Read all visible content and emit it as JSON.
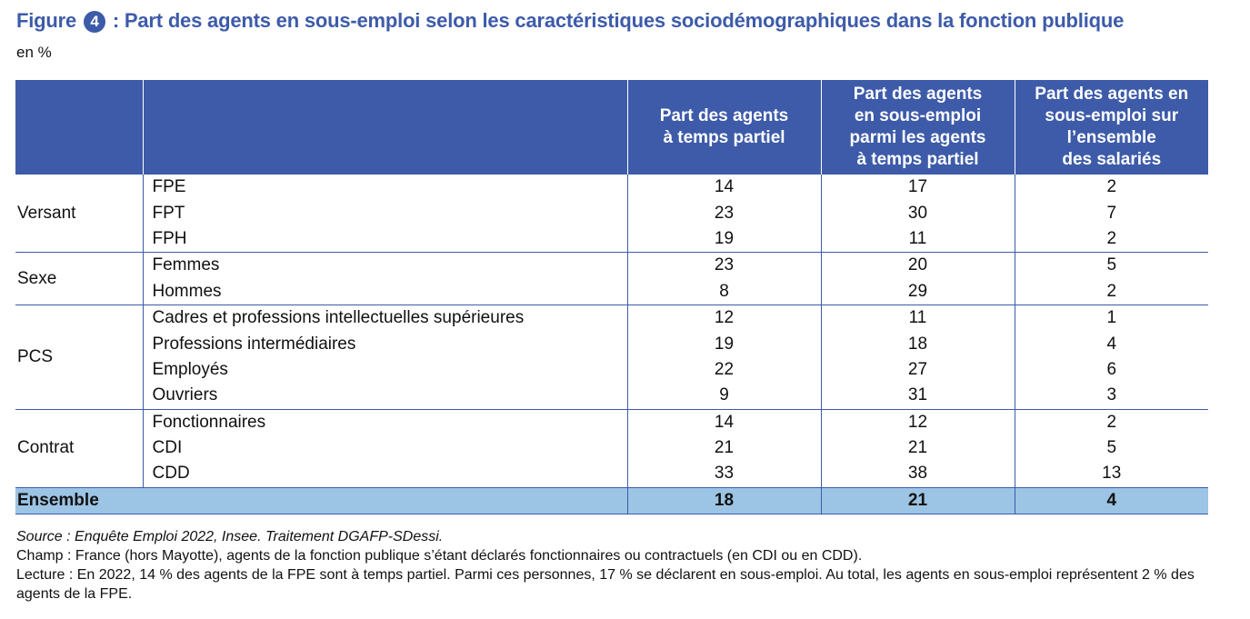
{
  "title": {
    "prefix": "Figure",
    "number": "4",
    "text": ": Part des agents en sous-emploi selon les caractéristiques sociodémographiques dans la fonction publique"
  },
  "unit": "en %",
  "table": {
    "columns": [
      "Part des agents\nà temps partiel",
      "Part des agents\nen sous-emploi\nparmi les agents\nà temps partiel",
      "Part des agents en\nsous-emploi sur\nl’ensemble\ndes salariés"
    ],
    "groups": [
      {
        "name": "Versant",
        "rows": [
          {
            "label": "FPE",
            "values": [
              "14",
              "17",
              "2"
            ]
          },
          {
            "label": "FPT",
            "values": [
              "23",
              "30",
              "7"
            ]
          },
          {
            "label": "FPH",
            "values": [
              "19",
              "11",
              "2"
            ]
          }
        ]
      },
      {
        "name": "Sexe",
        "rows": [
          {
            "label": "Femmes",
            "values": [
              "23",
              "20",
              "5"
            ]
          },
          {
            "label": "Hommes",
            "values": [
              "8",
              "29",
              "2"
            ]
          }
        ]
      },
      {
        "name": "PCS",
        "rows": [
          {
            "label": "Cadres et professions intellectuelles supérieures",
            "values": [
              "12",
              "11",
              "1"
            ]
          },
          {
            "label": "Professions intermédiaires",
            "values": [
              "19",
              "18",
              "4"
            ]
          },
          {
            "label": "Employés",
            "values": [
              "22",
              "27",
              "6"
            ]
          },
          {
            "label": "Ouvriers",
            "values": [
              "9",
              "31",
              "3"
            ]
          }
        ]
      },
      {
        "name": "Contrat",
        "rows": [
          {
            "label": "Fonctionnaires",
            "values": [
              "14",
              "12",
              "2"
            ]
          },
          {
            "label": "CDI",
            "values": [
              "21",
              "21",
              "5"
            ]
          },
          {
            "label": "CDD",
            "values": [
              "33",
              "38",
              "13"
            ]
          }
        ]
      }
    ],
    "total": {
      "label": "Ensemble",
      "values": [
        "18",
        "21",
        "4"
      ]
    }
  },
  "notes": {
    "source": "Source : Enquête Emploi 2022, Insee. Traitement DGAFP-SDessi.",
    "champ": "Champ : France (hors Mayotte), agents de la fonction publique s’étant déclarés fonctionnaires ou contractuels (en CDI ou en CDD).",
    "lecture": "Lecture : En 2022, 14 % des agents de la FPE sont à temps partiel. Parmi ces personnes, 17 % se déclarent en sous-emploi. Au total, les agents en sous-emploi représentent 2 % des agents de la FPE."
  },
  "colors": {
    "header_bg": "#3d5ba9",
    "total_bg": "#9cc4e4",
    "title": "#3d5ba9"
  }
}
